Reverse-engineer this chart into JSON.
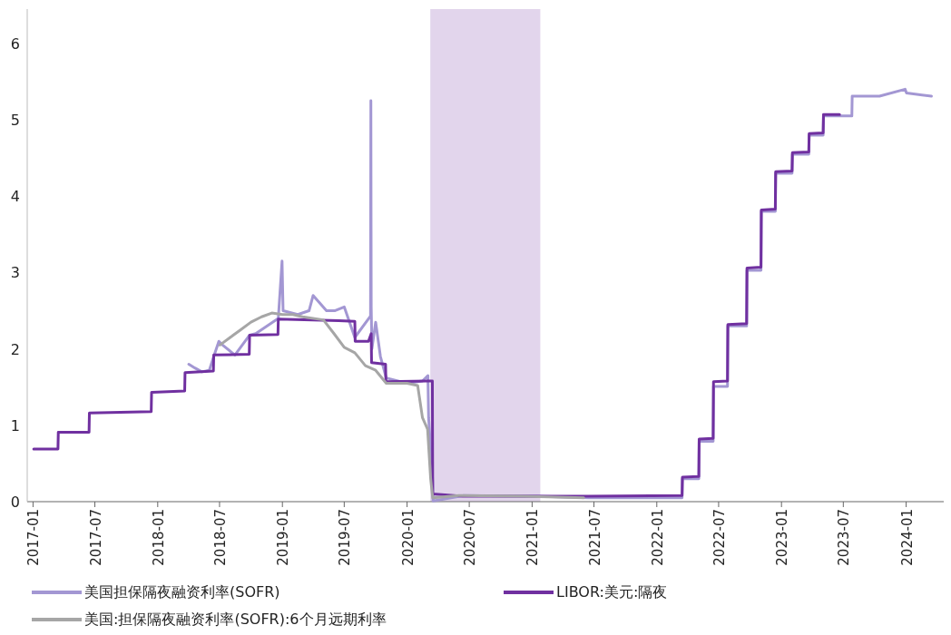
{
  "chart_data": {
    "type": "line",
    "ylim": [
      0,
      6.45
    ],
    "yticks": [
      0,
      1,
      2,
      3,
      4,
      5,
      6
    ],
    "xlim": [
      "2016-12-15",
      "2024-04-20"
    ],
    "xticks": [
      "2017-01",
      "2017-07",
      "2018-01",
      "2018-07",
      "2019-01",
      "2019-07",
      "2020-01",
      "2020-07",
      "2021-01",
      "2021-07",
      "2022-01",
      "2022-07",
      "2023-01",
      "2023-07",
      "2024-01"
    ],
    "grid": false,
    "legend": "bottom",
    "line_style": "solid",
    "marker": "none",
    "bands": [
      {
        "axis": "x",
        "from": "2020-03-09",
        "to": "2021-01-25",
        "color": "#e2d5ec"
      }
    ],
    "series": [
      {
        "name": "美国担保隔夜融资利率(SOFR)",
        "color": "#a397d3",
        "x": [
          "2018-04-02",
          "2018-04-20",
          "2018-05-10",
          "2018-06-01",
          "2018-06-14",
          "2018-06-29",
          "2018-07-10",
          "2018-08-15",
          "2018-09-27",
          "2018-10-15",
          "2018-12-20",
          "2018-12-31",
          "2019-01-03",
          "2019-02-15",
          "2019-03-20",
          "2019-04-01",
          "2019-05-10",
          "2019-06-03",
          "2019-07-01",
          "2019-08-01",
          "2019-09-16",
          "2019-09-17",
          "2019-09-18",
          "2019-09-20",
          "2019-10-01",
          "2019-10-15",
          "2019-11-01",
          "2019-12-31",
          "2020-02-15",
          "2020-03-02",
          "2020-03-04",
          "2020-03-16",
          "2020-03-17",
          "2020-06-15",
          "2021-01-15",
          "2021-06-15",
          "2022-03-16",
          "2022-03-17",
          "2022-05-04",
          "2022-05-05",
          "2022-06-15",
          "2022-06-16",
          "2022-07-27",
          "2022-07-28",
          "2022-09-21",
          "2022-09-22",
          "2022-11-02",
          "2022-11-03",
          "2022-12-14",
          "2022-12-15",
          "2023-02-01",
          "2023-02-02",
          "2023-03-22",
          "2023-03-23",
          "2023-05-03",
          "2023-05-04",
          "2023-07-26",
          "2023-07-27",
          "2023-10-15",
          "2023-12-29",
          "2024-01-02",
          "2024-03-15"
        ],
        "values": [
          1.8,
          1.75,
          1.7,
          1.72,
          1.9,
          2.1,
          2.05,
          1.92,
          2.18,
          2.2,
          2.4,
          3.15,
          2.5,
          2.45,
          2.5,
          2.7,
          2.5,
          2.5,
          2.55,
          2.15,
          2.43,
          5.25,
          2.55,
          2.0,
          2.35,
          1.9,
          1.62,
          1.55,
          1.58,
          1.65,
          1.1,
          0.26,
          0.01,
          0.08,
          0.07,
          0.05,
          0.05,
          0.3,
          0.3,
          0.79,
          0.79,
          1.51,
          1.51,
          2.3,
          2.3,
          3.03,
          3.03,
          3.8,
          3.8,
          4.3,
          4.3,
          4.55,
          4.55,
          4.8,
          4.8,
          5.05,
          5.05,
          5.31,
          5.31,
          5.4,
          5.35,
          5.31
        ]
      },
      {
        "name": "LIBOR:美元:隔夜",
        "color": "#7030a0",
        "x": [
          "2017-01-03",
          "2017-03-15",
          "2017-03-16",
          "2017-06-14",
          "2017-06-15",
          "2017-12-13",
          "2017-12-14",
          "2018-03-21",
          "2018-03-22",
          "2018-06-13",
          "2018-06-14",
          "2018-09-26",
          "2018-09-27",
          "2018-12-19",
          "2018-12-20",
          "2019-06-15",
          "2019-08-01",
          "2019-08-02",
          "2019-09-10",
          "2019-09-18",
          "2019-09-19",
          "2019-10-30",
          "2019-10-31",
          "2020-03-02",
          "2020-03-03",
          "2020-03-15",
          "2020-03-16",
          "2020-06-15",
          "2021-06-15",
          "2022-03-16",
          "2022-03-17",
          "2022-05-04",
          "2022-05-05",
          "2022-06-15",
          "2022-06-16",
          "2022-07-27",
          "2022-07-28",
          "2022-09-21",
          "2022-09-22",
          "2022-11-02",
          "2022-11-03",
          "2022-12-14",
          "2022-12-15",
          "2023-02-01",
          "2023-02-02",
          "2023-03-22",
          "2023-03-23",
          "2023-05-03",
          "2023-05-04",
          "2023-06-20"
        ],
        "values": [
          0.69,
          0.69,
          0.91,
          0.91,
          1.16,
          1.18,
          1.43,
          1.45,
          1.69,
          1.71,
          1.92,
          1.93,
          2.18,
          2.19,
          2.39,
          2.37,
          2.36,
          2.1,
          2.1,
          2.2,
          1.82,
          1.8,
          1.57,
          1.58,
          1.58,
          1.58,
          0.1,
          0.07,
          0.07,
          0.08,
          0.32,
          0.33,
          0.82,
          0.83,
          1.57,
          1.58,
          2.32,
          2.33,
          3.06,
          3.07,
          3.82,
          3.83,
          4.32,
          4.33,
          4.57,
          4.58,
          4.82,
          4.83,
          5.07,
          5.07
        ]
      },
      {
        "name": "美国:担保隔夜融资利率(SOFR):6个月远期利率",
        "color": "#a6a6a6",
        "x": [
          "2018-07-02",
          "2018-08-01",
          "2018-09-01",
          "2018-10-01",
          "2018-11-01",
          "2018-12-01",
          "2019-01-01",
          "2019-02-01",
          "2019-03-01",
          "2019-05-01",
          "2019-06-01",
          "2019-07-01",
          "2019-08-01",
          "2019-09-01",
          "2019-10-01",
          "2019-11-01",
          "2020-01-01",
          "2020-02-01",
          "2020-02-15",
          "2020-03-01",
          "2020-03-10",
          "2020-03-16",
          "2020-06-01",
          "2020-12-01",
          "2021-06-01"
        ],
        "values": [
          2.05,
          2.15,
          2.25,
          2.35,
          2.42,
          2.47,
          2.45,
          2.45,
          2.42,
          2.38,
          2.2,
          2.02,
          1.95,
          1.78,
          1.72,
          1.55,
          1.55,
          1.52,
          1.1,
          0.95,
          0.3,
          0.05,
          0.08,
          0.07,
          0.05
        ]
      }
    ]
  }
}
